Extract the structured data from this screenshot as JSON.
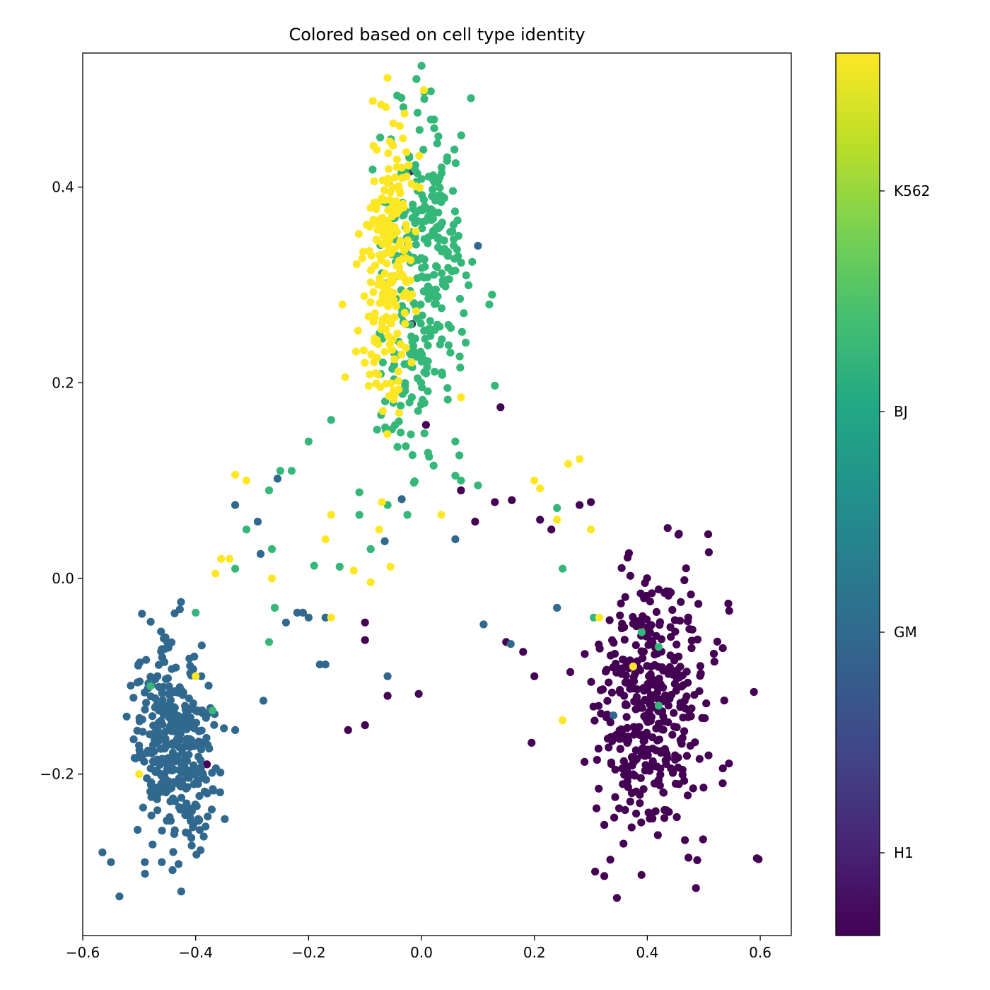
{
  "chart_data": {
    "type": "scatter",
    "title": "Colored based on cell type identity",
    "xlabel": "",
    "ylabel": "",
    "xlim": [
      -0.6,
      0.655
    ],
    "ylim": [
      -0.365,
      0.537
    ],
    "x_ticks": [
      "−0.6",
      "−0.4",
      "−0.2",
      "0.0",
      "0.2",
      "0.4",
      "0.6"
    ],
    "x_tick_values": [
      -0.6,
      -0.4,
      -0.2,
      0.0,
      0.2,
      0.4,
      0.6
    ],
    "y_ticks": [
      "−0.2",
      "0.0",
      "0.2",
      "0.4"
    ],
    "y_tick_values": [
      -0.2,
      0.0,
      0.2,
      0.4
    ],
    "grid": false,
    "colormap": "viridis",
    "colorbar": {
      "labels": [
        "H1",
        "GM",
        "BJ",
        "K562"
      ],
      "values": [
        0,
        1,
        2,
        3
      ],
      "range": [
        -0.375,
        3.625
      ]
    },
    "series": [
      {
        "name": "H1",
        "color": "#440154",
        "clusters": [
          {
            "cx": 0.41,
            "cy": -0.13,
            "sx": 0.055,
            "sy": 0.065,
            "n": 420,
            "rot": -0.55
          }
        ],
        "points": [
          [
            0.597,
            -0.287
          ],
          [
            0.594,
            -0.286
          ],
          [
            0.3,
            0.078
          ],
          [
            0.28,
            0.075
          ],
          [
            0.14,
            0.175
          ],
          [
            0.008,
            0.157
          ],
          [
            -0.017,
            0.26
          ],
          [
            -0.02,
            0.416
          ],
          [
            -0.1,
            -0.045
          ],
          [
            -0.1,
            -0.063
          ],
          [
            -0.1,
            -0.15
          ],
          [
            -0.13,
            -0.155
          ],
          [
            -0.06,
            -0.12
          ],
          [
            -0.005,
            -0.118
          ],
          [
            0.095,
            0.058
          ],
          [
            0.07,
            0.09
          ],
          [
            0.13,
            0.078
          ],
          [
            0.16,
            0.08
          ],
          [
            0.21,
            0.06
          ],
          [
            0.23,
            0.05
          ],
          [
            0.15,
            -0.065
          ],
          [
            0.18,
            -0.075
          ],
          [
            0.2,
            -0.1
          ],
          [
            0.195,
            -0.168
          ],
          [
            0.31,
            -0.235
          ],
          [
            0.35,
            -0.235
          ],
          [
            -0.38,
            -0.19
          ]
        ]
      },
      {
        "name": "GM",
        "color": "#31688e",
        "clusters": [
          {
            "cx": -0.44,
            "cy": -0.17,
            "sx": 0.04,
            "sy": 0.05,
            "n": 360,
            "rot": 0.6
          }
        ],
        "points": [
          [
            -0.535,
            -0.325
          ],
          [
            -0.565,
            -0.28
          ],
          [
            -0.55,
            -0.29
          ],
          [
            -0.49,
            -0.29
          ],
          [
            -0.46,
            -0.29
          ],
          [
            -0.33,
            0.075
          ],
          [
            -0.29,
            0.058
          ],
          [
            -0.285,
            0.025
          ],
          [
            -0.255,
            0.102
          ],
          [
            -0.24,
            -0.045
          ],
          [
            -0.22,
            -0.035
          ],
          [
            -0.21,
            -0.035
          ],
          [
            -0.2,
            -0.04
          ],
          [
            -0.17,
            -0.04
          ],
          [
            -0.17,
            -0.088
          ],
          [
            -0.18,
            -0.088
          ],
          [
            -0.065,
            0.038
          ],
          [
            -0.035,
            0.081
          ],
          [
            0.06,
            0.04
          ],
          [
            0.11,
            -0.047
          ],
          [
            0.158,
            -0.067
          ],
          [
            0.1,
            0.34
          ],
          [
            0.24,
            -0.03
          ],
          [
            0.34,
            -0.14
          ],
          [
            -0.06,
            -0.1
          ],
          [
            -0.33,
            -0.155
          ],
          [
            -0.28,
            -0.125
          ],
          [
            -0.39,
            -0.1
          ]
        ]
      },
      {
        "name": "BJ",
        "color": "#35b779",
        "clusters": [
          {
            "cx": 0.01,
            "cy": 0.34,
            "sx": 0.035,
            "sy": 0.07,
            "n": 240,
            "rot": 0.0
          },
          {
            "cx": -0.02,
            "cy": 0.2,
            "sx": 0.03,
            "sy": 0.05,
            "n": 60,
            "rot": 0.0
          }
        ],
        "points": [
          [
            0.005,
            0.497
          ],
          [
            0.005,
            0.49
          ],
          [
            -0.11,
            0.088
          ],
          [
            -0.11,
            0.065
          ],
          [
            -0.06,
            0.075
          ],
          [
            -0.025,
            0.065
          ],
          [
            -0.09,
            0.03
          ],
          [
            -0.145,
            0.012
          ],
          [
            -0.19,
            0.013
          ],
          [
            -0.23,
            0.11
          ],
          [
            -0.25,
            0.11
          ],
          [
            -0.27,
            0.09
          ],
          [
            -0.31,
            0.05
          ],
          [
            -0.33,
            0.01
          ],
          [
            -0.265,
            0.03
          ],
          [
            -0.26,
            -0.03
          ],
          [
            -0.4,
            -0.035
          ],
          [
            -0.48,
            -0.11
          ],
          [
            -0.37,
            -0.135
          ],
          [
            -0.27,
            -0.065
          ],
          [
            0.13,
            0.197
          ],
          [
            0.06,
            0.14
          ],
          [
            0.06,
            0.105
          ],
          [
            0.07,
            0.1
          ],
          [
            0.1,
            0.095
          ],
          [
            0.12,
            0.28
          ],
          [
            0.125,
            0.29
          ],
          [
            0.24,
            0.072
          ],
          [
            0.25,
            0.01
          ],
          [
            0.305,
            -0.04
          ],
          [
            0.39,
            -0.055
          ],
          [
            0.42,
            -0.13
          ],
          [
            0.42,
            -0.07
          ],
          [
            -0.16,
            0.162
          ],
          [
            -0.2,
            0.14
          ]
        ]
      },
      {
        "name": "K562",
        "color": "#fde725",
        "clusters": [
          {
            "cx": -0.055,
            "cy": 0.34,
            "sx": 0.02,
            "sy": 0.07,
            "n": 190,
            "rot": 0.0
          },
          {
            "cx": -0.07,
            "cy": 0.23,
            "sx": 0.02,
            "sy": 0.04,
            "n": 40,
            "rot": 0.0
          }
        ],
        "points": [
          [
            -0.14,
            0.28
          ],
          [
            -0.05,
            0.465
          ],
          [
            -0.03,
            0.475
          ],
          [
            -0.33,
            0.106
          ],
          [
            -0.31,
            0.1
          ],
          [
            -0.34,
            0.02
          ],
          [
            -0.355,
            0.02
          ],
          [
            -0.365,
            0.005
          ],
          [
            -0.265,
            0.0
          ],
          [
            -0.4,
            -0.1
          ],
          [
            -0.5,
            -0.2
          ],
          [
            -0.17,
            0.04
          ],
          [
            -0.16,
            0.065
          ],
          [
            -0.12,
            0.008
          ],
          [
            -0.09,
            -0.004
          ],
          [
            -0.075,
            0.05
          ],
          [
            -0.07,
            0.078
          ],
          [
            -0.055,
            0.012
          ],
          [
            0.035,
            0.065
          ],
          [
            0.07,
            0.185
          ],
          [
            0.2,
            0.1
          ],
          [
            0.21,
            0.092
          ],
          [
            0.24,
            0.06
          ],
          [
            0.26,
            0.117
          ],
          [
            0.28,
            0.122
          ],
          [
            0.3,
            0.05
          ],
          [
            0.315,
            -0.04
          ],
          [
            0.375,
            -0.09
          ],
          [
            0.25,
            -0.145
          ],
          [
            -0.16,
            -0.04
          ]
        ]
      }
    ]
  }
}
